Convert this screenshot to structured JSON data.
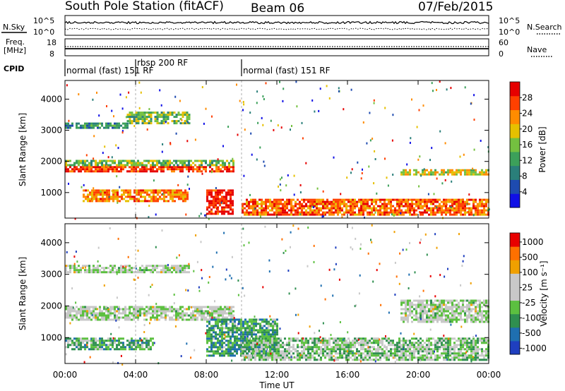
{
  "header": {
    "station": "South Pole Station (fitACF)",
    "beam": "Beam 06",
    "date": "07/Feb/2015"
  },
  "noise_panel": {
    "left_label": "N.Sky",
    "right_label": "N.Search",
    "left_ticks": [
      "10^5",
      "10^0"
    ],
    "right_ticks": [
      "10^5",
      "10^0"
    ]
  },
  "freq_panel": {
    "left_label_1": "Freq.",
    "left_label_2": "[MHz]",
    "right_label": "Nave",
    "left_ticks": [
      "18",
      "8"
    ],
    "right_ticks": [
      "60",
      "0"
    ]
  },
  "cpid": {
    "label": "CPID",
    "segments": [
      {
        "text": "normal (fast) 151 RF",
        "start_hour": 0
      },
      {
        "text": "rbsp 200 RF",
        "start_hour": 4
      },
      {
        "text": "normal (fast) 151 RF",
        "start_hour": 10
      }
    ]
  },
  "power_panel": {
    "ylabel": "Slant Range [km]",
    "yticks": [
      "1000",
      "2000",
      "3000",
      "4000"
    ],
    "colorbar_label": "Power [dB]",
    "colorbar_ticks": [
      "4",
      "8",
      "12",
      "16",
      "20",
      "24",
      "28"
    ]
  },
  "velocity_panel": {
    "ylabel": "Slant Range [km]",
    "yticks": [
      "1000",
      "2000",
      "3000",
      "4000"
    ],
    "colorbar_label": "Velocity [m s⁻¹]",
    "colorbar_ticks": [
      "1000",
      "500",
      "100",
      "25",
      "-25",
      "-100",
      "-500",
      "-1000"
    ]
  },
  "xaxis": {
    "label": "Time UT",
    "ticks": [
      "00:00",
      "04:00",
      "08:00",
      "12:00",
      "16:00",
      "20:00",
      "00:00"
    ]
  },
  "colors": {
    "power_scale": [
      "#1010e6",
      "#1e4bb0",
      "#2a7f7a",
      "#3ca05a",
      "#74c040",
      "#e6c000",
      "#ff8c00",
      "#ff4000",
      "#e60000"
    ],
    "velocity_scale": [
      "#1f3fbf",
      "#1f6fb0",
      "#2f8f50",
      "#5cc040",
      "#c8c8c8",
      "#c8c8c8",
      "#f0a000",
      "#ff7000",
      "#e80000"
    ]
  },
  "chart_data": [
    {
      "type": "heatmap",
      "variable": "power",
      "x": {
        "units": "UT hour",
        "range": [
          0,
          24
        ],
        "ticks": [
          0,
          4,
          8,
          12,
          16,
          20,
          24
        ]
      },
      "y": {
        "units": "km",
        "range": [
          180,
          4600
        ],
        "ticks": [
          1000,
          2000,
          3000,
          4000
        ]
      },
      "value_range": [
        0,
        30
      ],
      "regions": [
        {
          "t": [
            0,
            9.5
          ],
          "r": [
            1700,
            1850
          ],
          "value": 26
        },
        {
          "t": [
            0,
            9.5
          ],
          "r": [
            1850,
            2050
          ],
          "value": 14
        },
        {
          "t": [
            0,
            3.5
          ],
          "r": [
            3050,
            3250
          ],
          "value": 10
        },
        {
          "t": [
            3.5,
            7
          ],
          "r": [
            3200,
            3600
          ],
          "value": 14
        },
        {
          "t": [
            1,
            7
          ],
          "r": [
            700,
            1100
          ],
          "value": 22
        },
        {
          "t": [
            8,
            9.5
          ],
          "r": [
            300,
            1100
          ],
          "value": 28
        },
        {
          "t": [
            10,
            24
          ],
          "r": [
            300,
            800
          ],
          "value": 24
        },
        {
          "t": [
            19,
            24
          ],
          "r": [
            1550,
            1750
          ],
          "value": 18
        }
      ]
    },
    {
      "type": "heatmap",
      "variable": "velocity",
      "x": {
        "units": "UT hour",
        "range": [
          0,
          24
        ],
        "ticks": [
          0,
          4,
          8,
          12,
          16,
          20,
          24
        ]
      },
      "y": {
        "units": "km",
        "range": [
          180,
          4600
        ],
        "ticks": [
          1000,
          2000,
          3000,
          4000
        ]
      },
      "value_range": [
        -1000,
        1000
      ],
      "regions": [
        {
          "t": [
            0,
            9.5
          ],
          "r": [
            1550,
            2000
          ],
          "value": 0
        },
        {
          "t": [
            0,
            7
          ],
          "r": [
            3050,
            3300
          ],
          "value": 0
        },
        {
          "t": [
            0,
            5
          ],
          "r": [
            600,
            1000
          ],
          "value": -300
        },
        {
          "t": [
            8,
            12
          ],
          "r": [
            400,
            1600
          ],
          "value": -400
        },
        {
          "t": [
            10,
            24
          ],
          "r": [
            300,
            1000
          ],
          "value": -150
        },
        {
          "t": [
            19,
            24
          ],
          "r": [
            1500,
            2200
          ],
          "value": 0
        }
      ]
    }
  ]
}
